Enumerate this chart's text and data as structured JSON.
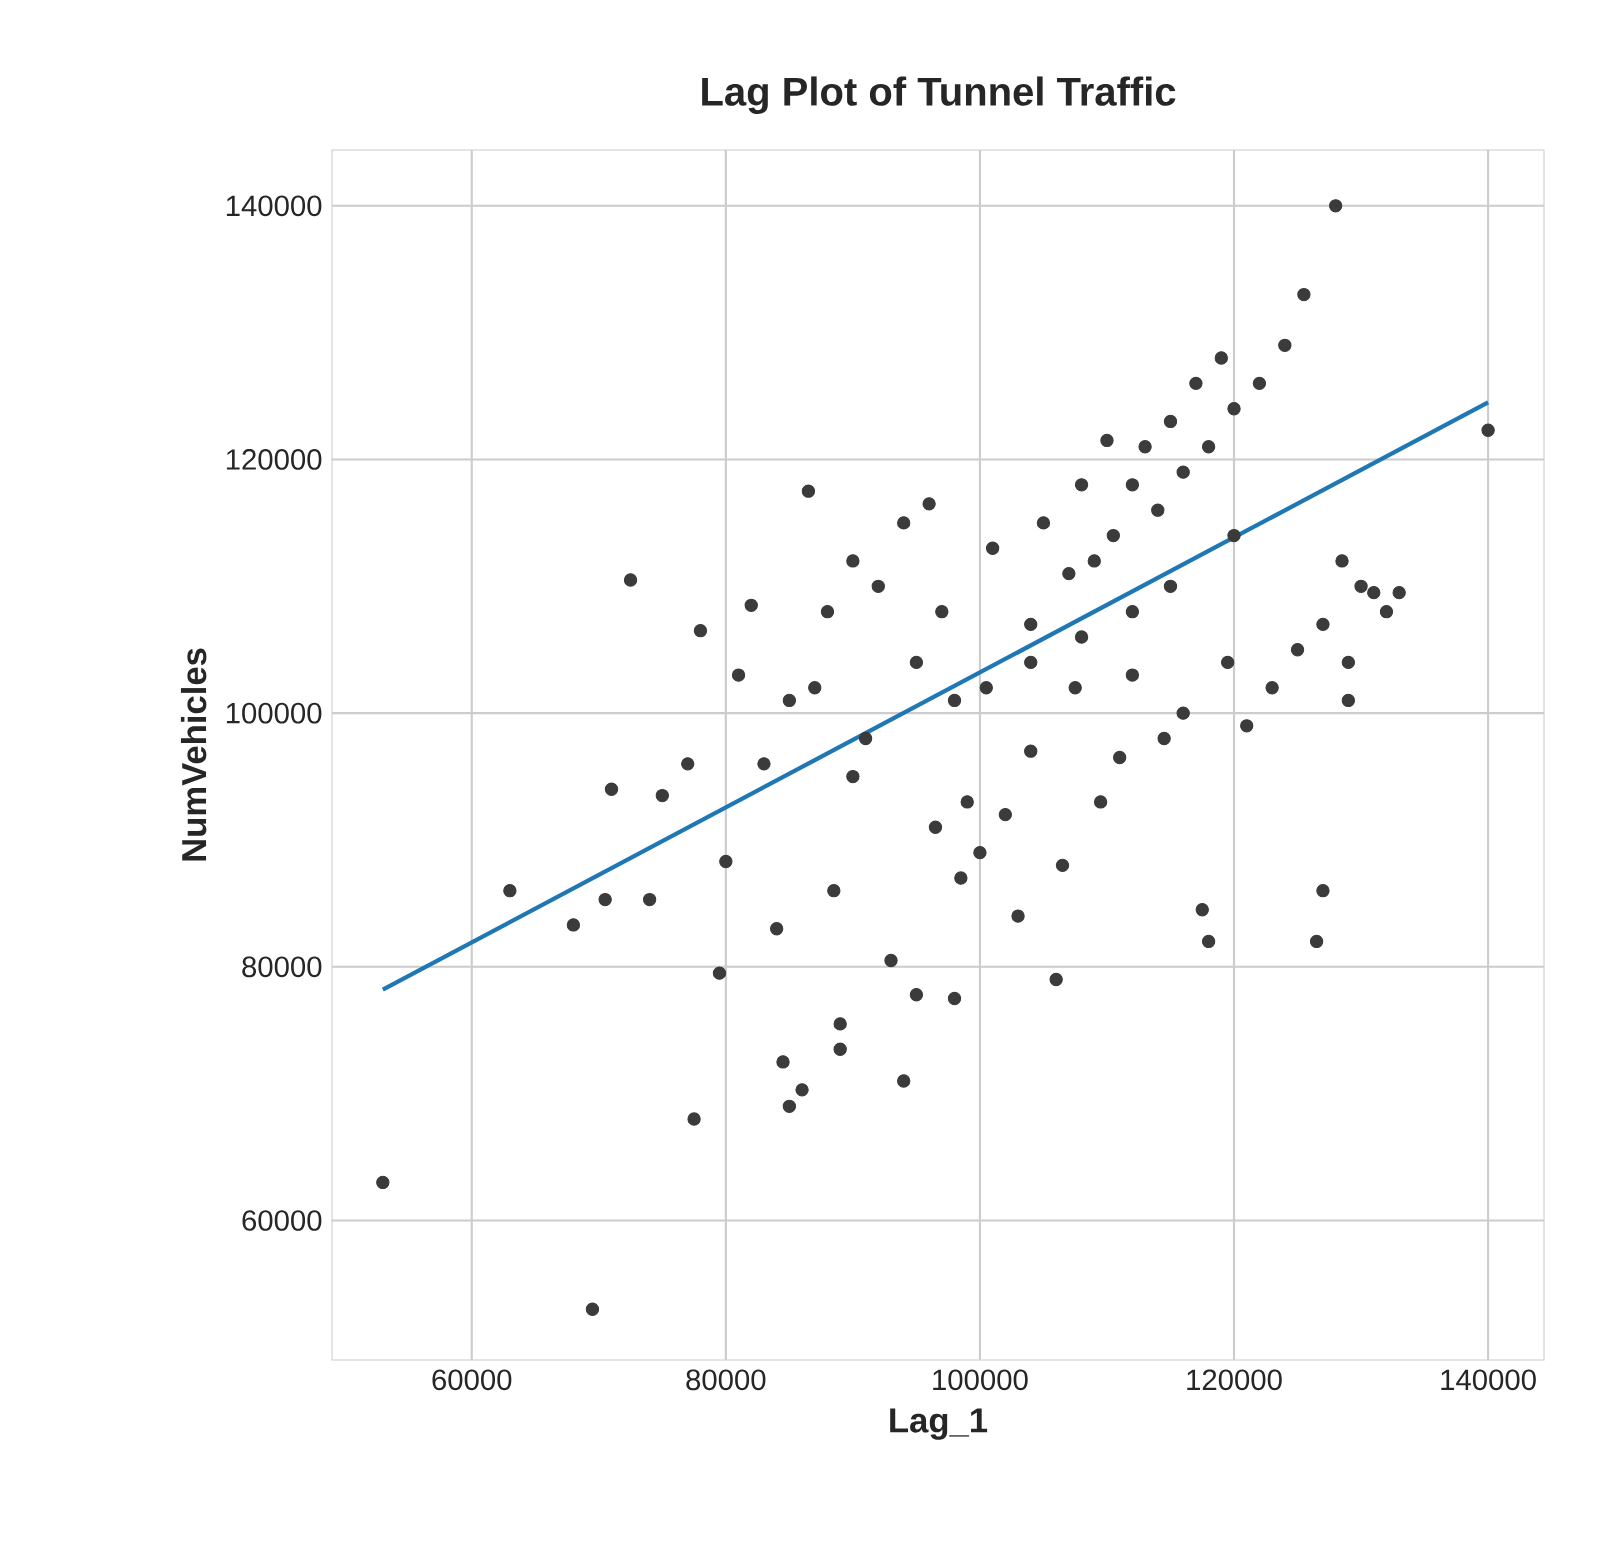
{
  "chart_data": {
    "type": "scatter",
    "title": "Lag Plot of Tunnel Traffic",
    "xlabel": "Lag_1",
    "ylabel": "NumVehicles",
    "xlim": [
      49000,
      144400
    ],
    "ylim": [
      49000,
      144400
    ],
    "xticks": [
      60000,
      80000,
      100000,
      120000,
      140000
    ],
    "yticks": [
      60000,
      80000,
      100000,
      120000,
      140000
    ],
    "grid": true,
    "series": [
      {
        "color": "#3b3b3b",
        "marker": "circle",
        "x": [
          53000,
          69500,
          63000,
          68000,
          70500,
          71000,
          72500,
          74000,
          75000,
          77000,
          78000,
          77500,
          79500,
          80000,
          81000,
          82000,
          83000,
          84000,
          84500,
          85000,
          86000,
          86500,
          87000,
          88000,
          88500,
          89000,
          89000,
          90000,
          91000,
          92000,
          93000,
          94000,
          94000,
          95000,
          96000,
          96500,
          97000,
          98000,
          98500,
          99000,
          100000,
          100500,
          101000,
          102000,
          103000,
          104000,
          104000,
          105000,
          106000,
          106500,
          107000,
          107500,
          108000,
          109000,
          109500,
          110000,
          110500,
          111000,
          112000,
          112000,
          113000,
          114000,
          114500,
          115000,
          116000,
          116000,
          117000,
          117500,
          118000,
          118000,
          119000,
          119500,
          120000,
          121000,
          122000,
          123000,
          124000,
          125000,
          125500,
          126500,
          127000,
          127000,
          128000,
          128500,
          129000,
          130000,
          131000,
          132000,
          133000,
          140000,
          129000,
          120000,
          115000,
          112000,
          108000,
          104000,
          98000,
          95000,
          85000,
          90000
        ],
        "values": [
          63000,
          53000,
          86000,
          83300,
          85300,
          94000,
          110500,
          85300,
          93500,
          96000,
          106500,
          68000,
          79500,
          88300,
          103000,
          108500,
          96000,
          83000,
          72500,
          69000,
          70300,
          117500,
          102000,
          108000,
          86000,
          75500,
          73500,
          112000,
          98000,
          110000,
          80500,
          71000,
          115000,
          77800,
          116500,
          91000,
          108000,
          77500,
          87000,
          93000,
          89000,
          102000,
          113000,
          92000,
          84000,
          97000,
          107000,
          115000,
          79000,
          88000,
          111000,
          102000,
          118000,
          112000,
          93000,
          121500,
          114000,
          96500,
          118000,
          103000,
          121000,
          116000,
          98000,
          123000,
          119000,
          100000,
          126000,
          84500,
          82000,
          121000,
          128000,
          104000,
          124000,
          99000,
          126000,
          102000,
          129000,
          105000,
          133000,
          82000,
          86000,
          107000,
          140000,
          112000,
          104000,
          110000,
          109500,
          108000,
          109500,
          122300,
          101000,
          114000,
          110000,
          108000,
          106000,
          104000,
          101000,
          104000,
          101000,
          95000
        ]
      },
      {
        "type": "line",
        "color": "#1f77b4",
        "x": [
          53000,
          140000
        ],
        "values": [
          78200,
          124500
        ]
      }
    ]
  }
}
